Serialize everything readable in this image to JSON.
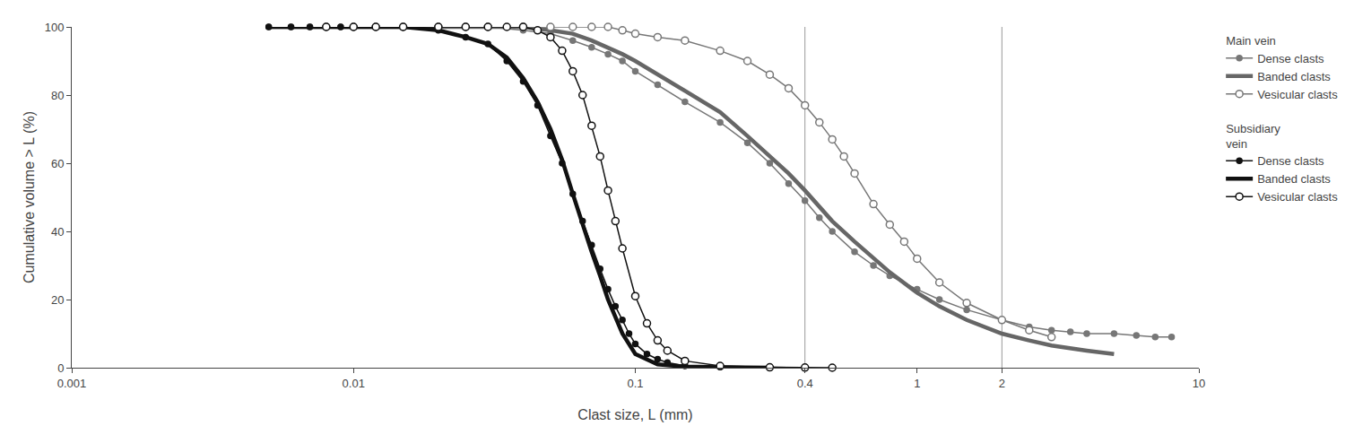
{
  "chart_data": {
    "type": "line",
    "xlabel": "Clast size, L (mm)",
    "ylabel": "Cumulative volume > L (%)",
    "log": "x",
    "grid": false,
    "xlim": [
      0.001,
      10
    ],
    "xticks": [
      0.001,
      0.01,
      0.1,
      0.4,
      1,
      2,
      10
    ],
    "ylim": [
      0,
      100
    ],
    "yticks": [
      0,
      20,
      40,
      60,
      80,
      100
    ],
    "vlines": [
      0.4,
      2
    ],
    "series": [
      {
        "name": "Dense clasts",
        "group": "Main vein",
        "color": "#777777",
        "marker": "circle",
        "x": [
          0.005,
          0.006,
          0.007,
          0.008,
          0.009,
          0.01,
          0.012,
          0.015,
          0.02,
          0.025,
          0.03,
          0.04,
          0.05,
          0.06,
          0.07,
          0.08,
          0.09,
          0.1,
          0.12,
          0.15,
          0.2,
          0.25,
          0.3,
          0.35,
          0.4,
          0.45,
          0.5,
          0.6,
          0.7,
          0.8,
          1.0,
          1.2,
          1.5,
          2.0,
          2.5,
          3.0,
          3.5,
          4.0,
          5.0,
          6.0,
          7.0,
          8.0
        ],
        "values": [
          100,
          100,
          100,
          100,
          100,
          100,
          100,
          100,
          100,
          100,
          100,
          99,
          98,
          96,
          94,
          92,
          90,
          87,
          83,
          78,
          72,
          66,
          60,
          54,
          49,
          44,
          40,
          34,
          30,
          27,
          23,
          20,
          17,
          14,
          12,
          11,
          10.5,
          10,
          10,
          9.5,
          9,
          9
        ]
      },
      {
        "name": "Banded clasts",
        "group": "Main vein",
        "color": "#666666",
        "marker": "none",
        "x": [
          0.005,
          0.006,
          0.007,
          0.008,
          0.009,
          0.01,
          0.012,
          0.015,
          0.02,
          0.025,
          0.03,
          0.04,
          0.05,
          0.06,
          0.07,
          0.08,
          0.09,
          0.1,
          0.12,
          0.15,
          0.2,
          0.25,
          0.3,
          0.35,
          0.4,
          0.5,
          0.6,
          0.7,
          0.8,
          1.0,
          1.2,
          1.5,
          2.0,
          2.5,
          3.0,
          4.0,
          5.0
        ],
        "values": [
          100,
          100,
          100,
          100,
          100,
          100,
          100,
          100,
          100,
          100,
          100,
          100,
          99,
          98,
          96,
          94,
          92,
          90,
          86,
          81,
          75,
          68,
          62,
          57,
          52,
          43,
          37,
          32,
          28,
          22,
          18,
          14,
          10,
          8,
          6.5,
          5,
          4
        ]
      },
      {
        "name": "Vesicular clasts",
        "group": "Main vein",
        "color": "#777777",
        "marker": "circle-open",
        "x": [
          0.008,
          0.01,
          0.012,
          0.015,
          0.02,
          0.025,
          0.03,
          0.04,
          0.05,
          0.06,
          0.07,
          0.08,
          0.09,
          0.1,
          0.12,
          0.15,
          0.2,
          0.25,
          0.3,
          0.35,
          0.4,
          0.45,
          0.5,
          0.55,
          0.6,
          0.7,
          0.8,
          0.9,
          1.0,
          1.2,
          1.5,
          2.0,
          2.5,
          3.0
        ],
        "values": [
          100,
          100,
          100,
          100,
          100,
          100,
          100,
          100,
          100,
          100,
          100,
          100,
          99,
          98,
          97,
          96,
          93,
          90,
          86,
          82,
          77,
          72,
          67,
          62,
          57,
          48,
          42,
          37,
          32,
          25,
          19,
          14,
          11,
          9
        ]
      },
      {
        "name": "Dense clasts",
        "group": "Subsidiary\nvein",
        "color": "#111111",
        "marker": "circle",
        "x": [
          0.005,
          0.006,
          0.007,
          0.008,
          0.009,
          0.01,
          0.012,
          0.015,
          0.02,
          0.025,
          0.03,
          0.035,
          0.04,
          0.045,
          0.05,
          0.055,
          0.06,
          0.065,
          0.07,
          0.075,
          0.08,
          0.085,
          0.09,
          0.095,
          0.1,
          0.11,
          0.12,
          0.13,
          0.15,
          0.2,
          0.3,
          0.4
        ],
        "values": [
          100,
          100,
          100,
          100,
          100,
          100,
          100,
          100,
          99,
          97,
          95,
          90,
          84,
          77,
          68,
          60,
          51,
          43,
          36,
          29,
          23,
          18,
          14,
          10,
          7,
          4,
          2.5,
          1.5,
          0.5,
          0.2,
          0.1,
          0
        ]
      },
      {
        "name": "Banded clasts",
        "group": "Subsidiary\nvein",
        "color": "#111111",
        "marker": "none",
        "x": [
          0.005,
          0.006,
          0.007,
          0.008,
          0.009,
          0.01,
          0.012,
          0.015,
          0.02,
          0.025,
          0.03,
          0.035,
          0.04,
          0.045,
          0.05,
          0.055,
          0.06,
          0.065,
          0.07,
          0.075,
          0.08,
          0.09,
          0.1,
          0.12,
          0.15,
          0.2,
          0.3
        ],
        "values": [
          100,
          100,
          100,
          100,
          100,
          100,
          100,
          100,
          99,
          97,
          95,
          91,
          85,
          78,
          70,
          61,
          51,
          42,
          34,
          27,
          20,
          10,
          4,
          1,
          0.3,
          0.1,
          0
        ]
      },
      {
        "name": "Vesicular clasts",
        "group": "Subsidiary\nvein",
        "color": "#111111",
        "marker": "circle-open",
        "x": [
          0.008,
          0.01,
          0.012,
          0.015,
          0.02,
          0.025,
          0.03,
          0.035,
          0.04,
          0.045,
          0.05,
          0.055,
          0.06,
          0.065,
          0.07,
          0.075,
          0.08,
          0.085,
          0.09,
          0.1,
          0.11,
          0.12,
          0.13,
          0.15,
          0.2,
          0.3,
          0.4,
          0.5
        ],
        "values": [
          100,
          100,
          100,
          100,
          100,
          100,
          100,
          100,
          100,
          99,
          97,
          93,
          87,
          80,
          71,
          62,
          52,
          43,
          35,
          21,
          13,
          8,
          5,
          2,
          0.5,
          0.1,
          0.05,
          0
        ]
      }
    ]
  }
}
